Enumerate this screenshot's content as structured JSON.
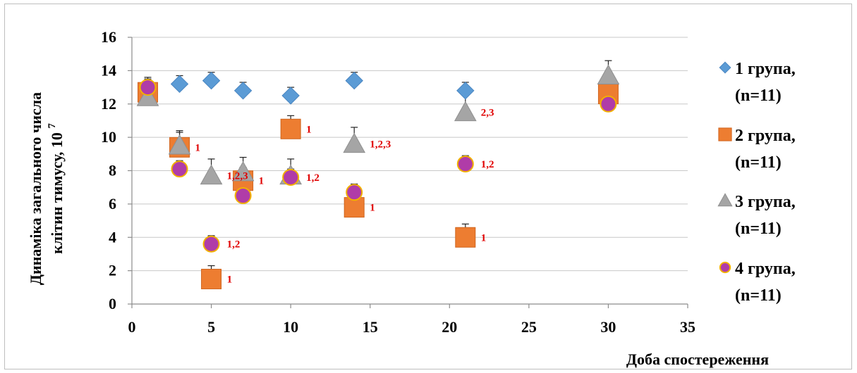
{
  "chart_data": {
    "type": "scatter",
    "xlabel": "Доба спостереження",
    "ylabel_line1": "Динаміка загального числа",
    "ylabel_line2": "клітин тимусу, 10",
    "ylabel_exponent": "7",
    "xlim": [
      0,
      35
    ],
    "ylim": [
      0,
      16
    ],
    "x_ticks": [
      0,
      5,
      10,
      15,
      20,
      25,
      30,
      35
    ],
    "y_ticks": [
      0,
      2,
      4,
      6,
      8,
      10,
      12,
      14,
      16
    ],
    "grid": "horizontal",
    "legend_position": "right",
    "series": [
      {
        "name_line1": "1 група,",
        "name_line2": "(n=11)",
        "marker": "diamond",
        "color": "#5b9bd5",
        "points": [
          {
            "x": 1,
            "y": 12.6,
            "err": 0.5
          },
          {
            "x": 3,
            "y": 13.2,
            "err": 0.5
          },
          {
            "x": 5,
            "y": 13.4,
            "err": 0.5
          },
          {
            "x": 7,
            "y": 12.8,
            "err": 0.5
          },
          {
            "x": 10,
            "y": 12.5,
            "err": 0.5
          },
          {
            "x": 14,
            "y": 13.4,
            "err": 0.5
          },
          {
            "x": 21,
            "y": 12.8,
            "err": 0.5
          },
          {
            "x": 30,
            "y": 12.7,
            "err": 0.5
          }
        ]
      },
      {
        "name_line1": "2 група,",
        "name_line2": "(n=11)",
        "marker": "square",
        "color": "#ed7d31",
        "points": [
          {
            "x": 1,
            "y": 12.7,
            "err": 0.9
          },
          {
            "x": 3,
            "y": 9.4,
            "err": 0.9,
            "annotation": "1"
          },
          {
            "x": 5,
            "y": 1.5,
            "err": 0.8,
            "annotation": "1"
          },
          {
            "x": 7,
            "y": 7.4,
            "err": 0.8,
            "annotation": "1"
          },
          {
            "x": 10,
            "y": 10.5,
            "err": 0.8,
            "annotation": "1"
          },
          {
            "x": 14,
            "y": 5.8,
            "err": 0.8,
            "annotation": "1"
          },
          {
            "x": 21,
            "y": 4.0,
            "err": 0.8,
            "annotation": "1"
          },
          {
            "x": 30,
            "y": 12.6,
            "err": 0.8
          }
        ]
      },
      {
        "name_line1": "3 група,",
        "name_line2": "(n=11)",
        "marker": "triangle",
        "color": "#a5a5a5",
        "points": [
          {
            "x": 1,
            "y": 12.4,
            "err": 0.9
          },
          {
            "x": 3,
            "y": 9.5,
            "err": 0.9
          },
          {
            "x": 5,
            "y": 7.7,
            "err": 1.0,
            "annotation": "1,2,3"
          },
          {
            "x": 7,
            "y": 7.9,
            "err": 0.9
          },
          {
            "x": 10,
            "y": 7.7,
            "err": 1.0
          },
          {
            "x": 14,
            "y": 9.6,
            "err": 1.0,
            "annotation": "1,2,3"
          },
          {
            "x": 21,
            "y": 11.5,
            "err": 1.0,
            "annotation": "2,3"
          },
          {
            "x": 30,
            "y": 13.7,
            "err": 0.9
          }
        ]
      },
      {
        "name_line1": "4 група,",
        "name_line2": "(n=11)",
        "marker": "circle",
        "color": "#b03ca8",
        "points": [
          {
            "x": 1,
            "y": 13.0,
            "err": 0.5
          },
          {
            "x": 3,
            "y": 8.1,
            "err": 0.5
          },
          {
            "x": 5,
            "y": 3.6,
            "err": 0.5,
            "annotation": "1,2"
          },
          {
            "x": 7,
            "y": 6.5,
            "err": 0.5
          },
          {
            "x": 10,
            "y": 7.6,
            "err": 0.5,
            "annotation": "1,2"
          },
          {
            "x": 14,
            "y": 6.7,
            "err": 0.5
          },
          {
            "x": 21,
            "y": 8.4,
            "err": 0.5,
            "annotation": "1,2"
          },
          {
            "x": 30,
            "y": 12.0,
            "err": 0.5
          }
        ]
      }
    ]
  }
}
